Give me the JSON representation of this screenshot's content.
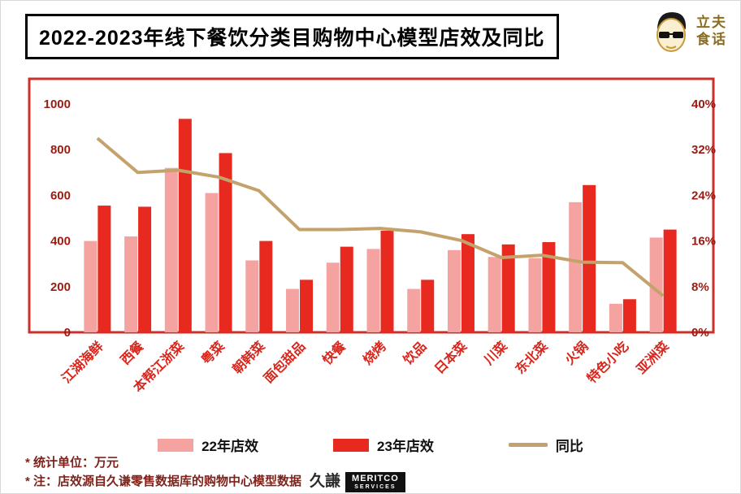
{
  "header": {
    "title": "2022-2023年线下餐饮分类目购物中心模型店效及同比"
  },
  "logo": {
    "name": "立夫食话",
    "line1": "立夫",
    "line2": "食话"
  },
  "chart_data": {
    "type": "bar",
    "title": "2022-2023年线下餐饮分类目购物中心模型店效及同比",
    "categories": [
      "江湖海鲜",
      "西餐",
      "本帮江浙菜",
      "粤菜",
      "朝韩菜",
      "面包甜品",
      "快餐",
      "烧烤",
      "饮品",
      "日本菜",
      "川菜",
      "东北菜",
      "火锅",
      "特色小吃",
      "亚洲菜"
    ],
    "series": [
      {
        "name": "22年店效",
        "type": "bar",
        "axis": "left",
        "color": "#F5A3A1",
        "values": [
          400,
          420,
          720,
          610,
          315,
          190,
          305,
          365,
          190,
          360,
          330,
          325,
          570,
          125,
          415
        ]
      },
      {
        "name": "23年店效",
        "type": "bar",
        "axis": "left",
        "color": "#E8291F",
        "values": [
          555,
          550,
          935,
          785,
          400,
          230,
          375,
          445,
          230,
          430,
          385,
          395,
          645,
          145,
          450
        ]
      },
      {
        "name": "同比",
        "type": "line",
        "axis": "right",
        "color": "#C4A26B",
        "values": [
          34,
          28,
          28.4,
          27.2,
          24.8,
          18,
          18,
          18.2,
          17.6,
          16.1,
          13.1,
          13.5,
          12.3,
          12.2,
          6.4
        ]
      }
    ],
    "left_axis": {
      "min": 0,
      "max": 1000,
      "ticks": [
        0,
        200,
        400,
        600,
        800,
        1000
      ],
      "unit": "万元"
    },
    "right_axis": {
      "min": 0,
      "max": 40,
      "tick_values": [
        0,
        8,
        16,
        24,
        32,
        40
      ],
      "tick_labels": [
        "0%",
        "8%",
        "16%",
        "24%",
        "32%",
        "40%"
      ]
    },
    "grid": false,
    "legend_position": "bottom",
    "frame_color": "#C9322B"
  },
  "footnotes": {
    "line1": "* 统计单位：万元",
    "line2": "* 注：店效源自久谦零售数据库的购物中心模型数据"
  },
  "meritco": {
    "cn": "久謙",
    "brand": "MERITCO",
    "sub": "SERVICES"
  }
}
